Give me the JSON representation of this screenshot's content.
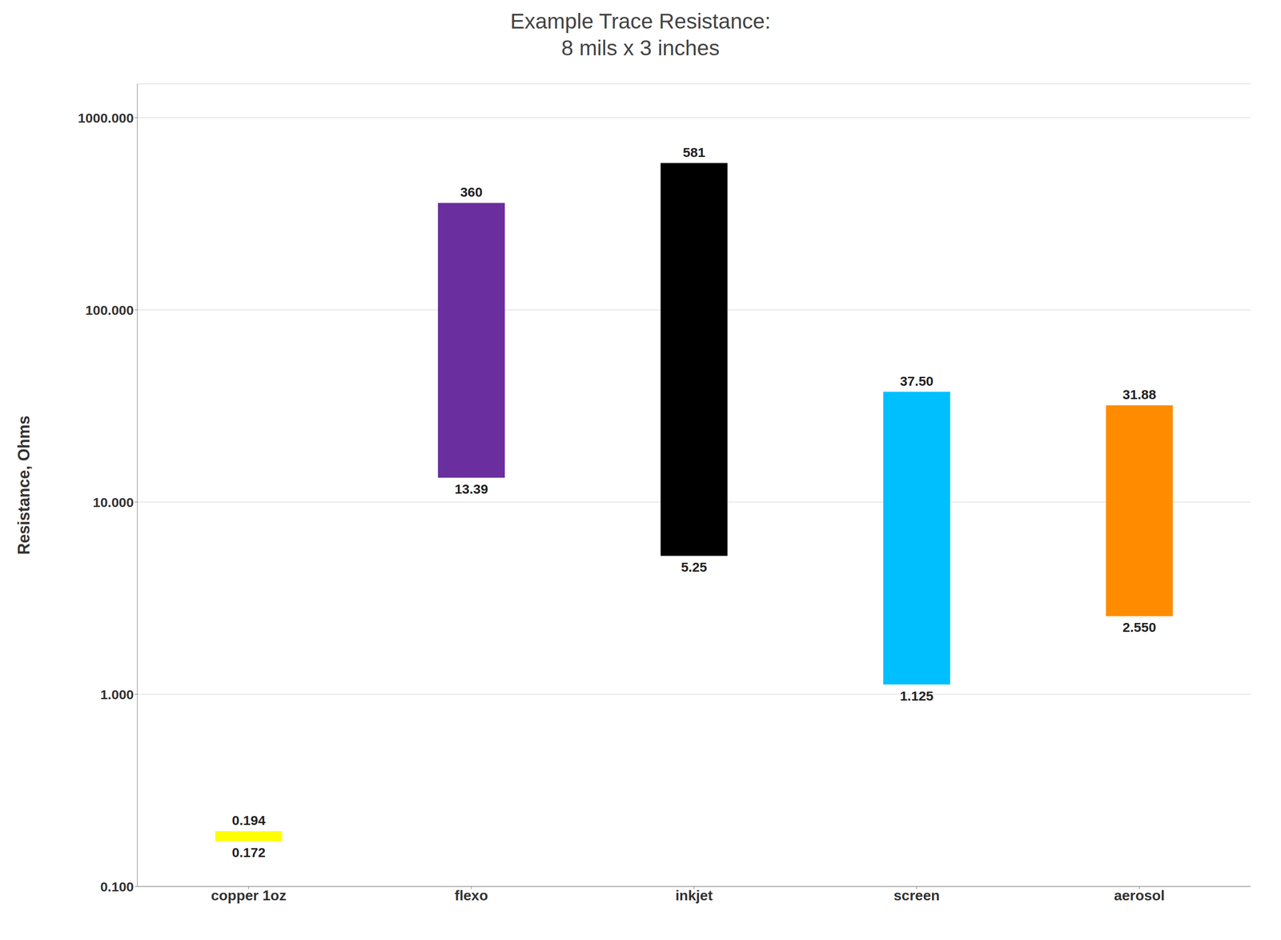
{
  "chart_data": {
    "type": "bar",
    "title": "Example Trace Resistance:\n8 mils x 3 inches",
    "y_label": "Resistance, Ohms",
    "categories": [
      "copper 1oz",
      "flexo",
      "inkjet",
      "screen",
      "aerosol"
    ],
    "values": [
      [
        0.172,
        0.194
      ],
      [
        13.39,
        360
      ],
      [
        5.25,
        581
      ],
      [
        1.125,
        37.5
      ],
      [
        2.55,
        31.88
      ]
    ],
    "value_labels": [
      [
        "0.172",
        "0.194"
      ],
      [
        "13.39",
        "360"
      ],
      [
        "5.25",
        "581"
      ],
      [
        "1.125",
        "37.50"
      ],
      [
        "2.550",
        "31.88"
      ]
    ],
    "colors": [
      "#FFFF00",
      "#6B2E9E",
      "#000000",
      "#00BFFF",
      "#FF8C00"
    ],
    "log": "y",
    "ylim": [
      0.1,
      1500
    ],
    "yticks": [
      {
        "value": 0.1,
        "label": "0.100"
      },
      {
        "value": 1.0,
        "label": "1.000"
      },
      {
        "value": 10.0,
        "label": "10.000"
      },
      {
        "value": 100.0,
        "label": "100.000"
      },
      {
        "value": 1000.0,
        "label": "1000.000"
      }
    ],
    "grid": true,
    "data_labels": true
  }
}
